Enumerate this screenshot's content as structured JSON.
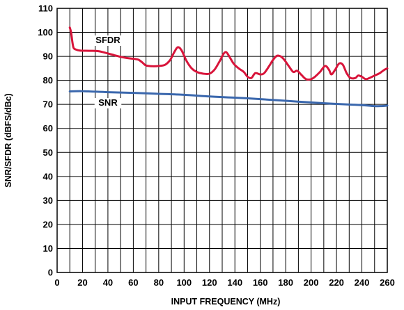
{
  "chart_data": {
    "type": "line",
    "xlabel": "INPUT FREQUENCY (MHz)",
    "ylabel": "SNR/SFDR (dBFS/dBc)",
    "xlim": [
      0,
      260
    ],
    "ylim": [
      0,
      110
    ],
    "xticks": [
      0,
      20,
      40,
      60,
      80,
      100,
      120,
      140,
      160,
      180,
      200,
      220,
      240,
      260
    ],
    "yticks": [
      0,
      10,
      20,
      30,
      40,
      50,
      60,
      70,
      80,
      90,
      100,
      110
    ],
    "grid": true,
    "series": [
      {
        "name": "SFDR",
        "color": "#d8143a",
        "points": [
          [
            10,
            102
          ],
          [
            11,
            100
          ],
          [
            12,
            96
          ],
          [
            13,
            93.5
          ],
          [
            15,
            92.8
          ],
          [
            18,
            92.4
          ],
          [
            25,
            92.3
          ],
          [
            32,
            92.2
          ],
          [
            38,
            91.5
          ],
          [
            45,
            90.5
          ],
          [
            50,
            89.8
          ],
          [
            55,
            89.3
          ],
          [
            60,
            89
          ],
          [
            64,
            88.6
          ],
          [
            67,
            87.5
          ],
          [
            70,
            86.2
          ],
          [
            75,
            85.9
          ],
          [
            80,
            86
          ],
          [
            85,
            86.5
          ],
          [
            89,
            88.5
          ],
          [
            92,
            91.5
          ],
          [
            95,
            93.8
          ],
          [
            98,
            92.5
          ],
          [
            102,
            88
          ],
          [
            106,
            85
          ],
          [
            110,
            83.5
          ],
          [
            115,
            82.8
          ],
          [
            120,
            82.8
          ],
          [
            124,
            84.5
          ],
          [
            128,
            88
          ],
          [
            131,
            91
          ],
          [
            133,
            91.8
          ],
          [
            135,
            90.5
          ],
          [
            139,
            87
          ],
          [
            143,
            85
          ],
          [
            147,
            83.5
          ],
          [
            150,
            81.5
          ],
          [
            153,
            81
          ],
          [
            156,
            83
          ],
          [
            160,
            82.5
          ],
          [
            163,
            83
          ],
          [
            167,
            86
          ],
          [
            170,
            88.5
          ],
          [
            173,
            90.2
          ],
          [
            176,
            90
          ],
          [
            179,
            88.5
          ],
          [
            183,
            85.5
          ],
          [
            186,
            83.5
          ],
          [
            189,
            84
          ],
          [
            192,
            82.5
          ],
          [
            196,
            80.5
          ],
          [
            200,
            80.5
          ],
          [
            203,
            81.5
          ],
          [
            207,
            83.5
          ],
          [
            211,
            86
          ],
          [
            214,
            84.5
          ],
          [
            216,
            82.5
          ],
          [
            219,
            84.5
          ],
          [
            222,
            87
          ],
          [
            225,
            86.5
          ],
          [
            228,
            83
          ],
          [
            231,
            81
          ],
          [
            235,
            81
          ],
          [
            237,
            82
          ],
          [
            240,
            81.5
          ],
          [
            243,
            80.5
          ],
          [
            246,
            81
          ],
          [
            250,
            82
          ],
          [
            254,
            83
          ],
          [
            258,
            84.5
          ],
          [
            260,
            85
          ]
        ]
      },
      {
        "name": "SNR",
        "color": "#3a67ad",
        "points": [
          [
            10,
            75.4
          ],
          [
            20,
            75.5
          ],
          [
            40,
            75.1
          ],
          [
            60,
            74.8
          ],
          [
            80,
            74.4
          ],
          [
            100,
            74
          ],
          [
            120,
            73.3
          ],
          [
            140,
            72.8
          ],
          [
            160,
            72.2
          ],
          [
            180,
            71.5
          ],
          [
            200,
            70.8
          ],
          [
            220,
            70.2
          ],
          [
            240,
            69.7
          ],
          [
            250,
            69.3
          ],
          [
            255,
            69.3
          ],
          [
            260,
            69.5
          ]
        ]
      }
    ],
    "annotations": [
      {
        "text": "SFDR",
        "series": "SFDR"
      },
      {
        "text": "SNR",
        "series": "SNR"
      }
    ]
  }
}
